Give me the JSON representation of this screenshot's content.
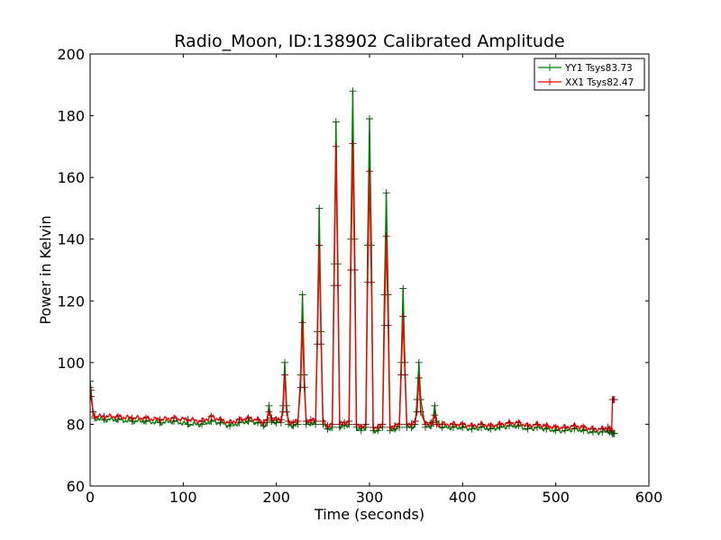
{
  "chart_data": {
    "type": "line",
    "title": "Radio_Moon, ID:138902 Calibrated Amplitude",
    "xlabel": "Time (seconds)",
    "ylabel": "Power in Kelvin",
    "xlim": [
      0,
      600
    ],
    "ylim": [
      60,
      200
    ],
    "xticks": [
      0,
      100,
      200,
      300,
      400,
      500,
      600
    ],
    "yticks": [
      60,
      80,
      100,
      120,
      140,
      160,
      180,
      200
    ],
    "grid": false,
    "legend_position": "top-right",
    "series": [
      {
        "name": "YY1 Tsys83.73",
        "color": "#008000",
        "marker": "+",
        "x": [
          0,
          1,
          3,
          5,
          15,
          30,
          45,
          60,
          75,
          90,
          105,
          120,
          130,
          140,
          150,
          160,
          170,
          180,
          186,
          190,
          192,
          195,
          200,
          205,
          207,
          209,
          211,
          213,
          218,
          223,
          226,
          228,
          230,
          232,
          237,
          242,
          244,
          246,
          248,
          250,
          255,
          260,
          262,
          264,
          266,
          268,
          273,
          278,
          280,
          282,
          284,
          286,
          291,
          296,
          298,
          300,
          302,
          304,
          309,
          314,
          316,
          318,
          320,
          322,
          327,
          332,
          334,
          336,
          338,
          340,
          345,
          349,
          351,
          353,
          355,
          360,
          366,
          368,
          370,
          372,
          378,
          390,
          400,
          410,
          420,
          430,
          440,
          450,
          460,
          470,
          480,
          490,
          500,
          510,
          520,
          530,
          540,
          550,
          556,
          558,
          560,
          561,
          562,
          563
        ],
        "values": [
          94,
          91,
          84,
          82,
          81.5,
          81.5,
          81,
          81,
          80.5,
          81,
          80,
          80,
          81,
          80.5,
          79.5,
          80.5,
          81,
          80.5,
          79.5,
          80.5,
          86,
          81,
          80.5,
          80.5,
          86,
          100,
          86,
          80,
          79.5,
          80,
          96,
          122,
          96,
          80,
          80.5,
          80,
          110,
          150,
          110,
          80,
          78.5,
          79,
          132,
          178,
          132,
          79,
          79.5,
          80,
          140,
          188,
          140,
          79,
          78,
          79,
          138,
          179,
          138,
          78,
          78,
          79,
          122,
          155,
          122,
          78,
          78.5,
          79,
          100,
          124,
          100,
          79,
          79,
          80,
          88,
          100,
          88,
          79,
          79.5,
          81,
          86,
          81,
          79,
          79,
          79,
          78.5,
          79,
          78.5,
          79,
          79.5,
          79.5,
          78.5,
          79,
          78.5,
          78,
          78,
          78.5,
          78,
          77.5,
          77.5,
          78,
          77.5,
          77.5,
          77,
          77,
          77
        ]
      },
      {
        "name": "XX1 Tsys82.47",
        "color": "#ff0000",
        "marker": "+",
        "x": [
          0,
          1,
          3,
          5,
          15,
          30,
          45,
          60,
          75,
          90,
          105,
          120,
          130,
          140,
          150,
          160,
          170,
          180,
          186,
          190,
          192,
          195,
          200,
          205,
          207,
          209,
          211,
          213,
          218,
          223,
          226,
          228,
          230,
          232,
          237,
          242,
          244,
          246,
          248,
          250,
          255,
          260,
          262,
          264,
          266,
          268,
          273,
          278,
          280,
          282,
          284,
          286,
          291,
          296,
          298,
          300,
          302,
          304,
          309,
          314,
          316,
          318,
          320,
          322,
          327,
          332,
          334,
          336,
          338,
          340,
          345,
          349,
          351,
          353,
          355,
          360,
          366,
          368,
          370,
          372,
          378,
          390,
          400,
          410,
          420,
          430,
          440,
          450,
          460,
          470,
          480,
          490,
          500,
          510,
          520,
          530,
          540,
          550,
          556,
          558,
          560,
          561,
          562,
          563
        ],
        "values": [
          92,
          89,
          84,
          82.5,
          82.5,
          82.5,
          82,
          82,
          81.5,
          82,
          81.5,
          81,
          82.5,
          81.5,
          80.5,
          81.5,
          82,
          81.5,
          80.5,
          81.5,
          84,
          82,
          81.5,
          81.5,
          84,
          96,
          84,
          81,
          80.5,
          81,
          92,
          113,
          92,
          81,
          81.5,
          81,
          106,
          138,
          106,
          81,
          79.5,
          80,
          125,
          170,
          125,
          80,
          80.5,
          81,
          130,
          171,
          130,
          80,
          79,
          80,
          126,
          162,
          126,
          79,
          79,
          80,
          112,
          141,
          112,
          79,
          79.5,
          80,
          96,
          115,
          96,
          80,
          80,
          81,
          84,
          95,
          84,
          80,
          80.5,
          80.5,
          83,
          80,
          80,
          80,
          80,
          79.5,
          80,
          79.5,
          80,
          80.5,
          80.5,
          79.5,
          80,
          79.5,
          79,
          79,
          79.5,
          79,
          78.5,
          78.5,
          79,
          78.5,
          78,
          88,
          88,
          88
        ]
      }
    ]
  }
}
